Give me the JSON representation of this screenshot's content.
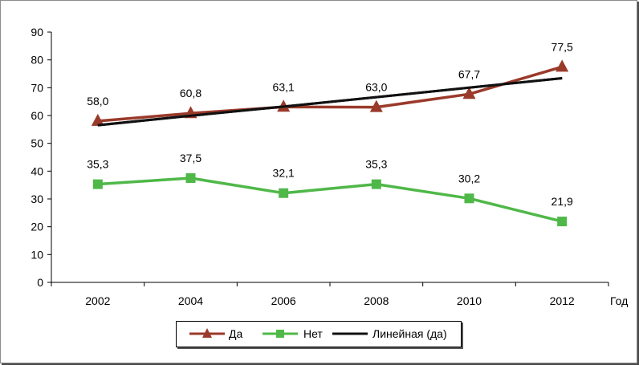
{
  "chart_data": {
    "type": "line",
    "categories": [
      "2002",
      "2004",
      "2006",
      "2008",
      "2010",
      "2012"
    ],
    "xlabel": "Год",
    "ylabel": "",
    "ylim": [
      0,
      90
    ],
    "yticks": [
      "0",
      "10",
      "20",
      "30",
      "40",
      "50",
      "60",
      "70",
      "80",
      "90"
    ],
    "series": [
      {
        "name": "Да",
        "marker": "triangle",
        "color": "#9a3a2a",
        "values": [
          58.0,
          60.8,
          63.1,
          63.0,
          67.7,
          77.5
        ],
        "labels": [
          "58,0",
          "60,8",
          "63,1",
          "63,0",
          "67,7",
          "77,5"
        ]
      },
      {
        "name": "Нет",
        "marker": "square",
        "color": "#4fb848",
        "values": [
          35.3,
          37.5,
          32.1,
          35.3,
          30.2,
          21.9
        ],
        "labels": [
          "35,3",
          "37,5",
          "32,1",
          "35,3",
          "30,2",
          "21,9"
        ]
      },
      {
        "name": "Линейная (да)",
        "marker": "none",
        "color": "#111111",
        "trendline_of": "Да",
        "values": [
          56.5,
          59.9,
          63.2,
          66.6,
          70.0,
          73.4
        ]
      }
    ],
    "grid": false,
    "legend": "bottom-center"
  }
}
